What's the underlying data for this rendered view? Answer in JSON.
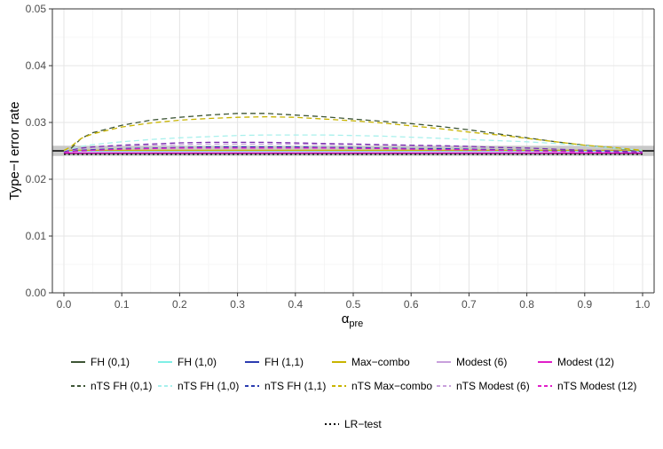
{
  "chart_data": {
    "type": "line",
    "xlabel_main": "α",
    "xlabel_sub": "pre",
    "ylabel": "Type−I error rate",
    "xlim": [
      0,
      1
    ],
    "ylim": [
      0,
      0.05
    ],
    "x_ticks": [
      0,
      0.1,
      0.2,
      0.3,
      0.4,
      0.5,
      0.6,
      0.7,
      0.8,
      0.9,
      1.0
    ],
    "x_tick_labels": [
      "0.0",
      "0.1",
      "0.2",
      "0.3",
      "0.4",
      "0.5",
      "0.6",
      "0.7",
      "0.8",
      "0.9",
      "1.0"
    ],
    "y_ticks": [
      0,
      0.01,
      0.02,
      0.03,
      0.04,
      0.05
    ],
    "y_tick_labels": [
      "0.00",
      "0.01",
      "0.02",
      "0.03",
      "0.04",
      "0.05"
    ],
    "reference_line": {
      "value": 0.025,
      "band": [
        0.0241,
        0.0259
      ],
      "color": "#000000",
      "band_color": "#bfbfbf"
    },
    "x": [
      0,
      0.01,
      0.03,
      0.05,
      0.1,
      0.15,
      0.2,
      0.25,
      0.3,
      0.35,
      0.4,
      0.45,
      0.5,
      0.55,
      0.6,
      0.65,
      0.7,
      0.75,
      0.8,
      0.85,
      0.9,
      0.95,
      1.0
    ],
    "series": [
      {
        "name": "FH (0,1)",
        "color": "#3d5535",
        "dash": "solid",
        "values": [
          0.0245,
          0.0245,
          0.0245,
          0.0245,
          0.0245,
          0.0245,
          0.0245,
          0.0245,
          0.0245,
          0.0245,
          0.0245,
          0.0245,
          0.0245,
          0.0245,
          0.0245,
          0.0245,
          0.0245,
          0.0245,
          0.0245,
          0.0245,
          0.0245,
          0.0245,
          0.0245
        ]
      },
      {
        "name": "FH (1,0)",
        "color": "#7fefe6",
        "dash": "solid",
        "values": [
          0.0249,
          0.0249,
          0.0249,
          0.0249,
          0.0249,
          0.0249,
          0.0249,
          0.0249,
          0.0249,
          0.0249,
          0.0249,
          0.0249,
          0.0249,
          0.0249,
          0.0249,
          0.0249,
          0.0249,
          0.0249,
          0.0249,
          0.0249,
          0.0249,
          0.0249,
          0.0249
        ]
      },
      {
        "name": "FH (1,1)",
        "color": "#2b3cb0",
        "dash": "solid",
        "values": [
          0.0247,
          0.0247,
          0.0247,
          0.0247,
          0.0247,
          0.0247,
          0.0247,
          0.0247,
          0.0247,
          0.0247,
          0.0247,
          0.0247,
          0.0247,
          0.0247,
          0.0247,
          0.0247,
          0.0247,
          0.0247,
          0.0247,
          0.0247,
          0.0247,
          0.0247,
          0.0247
        ]
      },
      {
        "name": "Max−combo",
        "color": "#c8b400",
        "dash": "solid",
        "values": [
          0.0251,
          0.0251,
          0.0251,
          0.0251,
          0.0251,
          0.0251,
          0.0251,
          0.0251,
          0.0251,
          0.0251,
          0.0251,
          0.0251,
          0.0251,
          0.0251,
          0.0251,
          0.0251,
          0.0251,
          0.0251,
          0.0251,
          0.0251,
          0.0251,
          0.0251,
          0.0251
        ]
      },
      {
        "name": "Modest (6)",
        "color": "#c8a0dc",
        "dash": "solid",
        "values": [
          0.0248,
          0.0248,
          0.0248,
          0.0248,
          0.0248,
          0.0248,
          0.0248,
          0.0248,
          0.0248,
          0.0248,
          0.0248,
          0.0248,
          0.0248,
          0.0248,
          0.0248,
          0.0248,
          0.0248,
          0.0248,
          0.0248,
          0.0248,
          0.0248,
          0.0248,
          0.0248
        ]
      },
      {
        "name": "Modest (12)",
        "color": "#e01ec8",
        "dash": "solid",
        "values": [
          0.0246,
          0.0246,
          0.0246,
          0.0246,
          0.0246,
          0.0246,
          0.0246,
          0.0246,
          0.0246,
          0.0246,
          0.0246,
          0.0246,
          0.0246,
          0.0246,
          0.0246,
          0.0246,
          0.0246,
          0.0246,
          0.0246,
          0.0246,
          0.0246,
          0.0246,
          0.0246
        ]
      },
      {
        "name": "nTS FH (0,1)",
        "color": "#3d5535",
        "dash": "dashed",
        "values": [
          0.0245,
          0.0252,
          0.0272,
          0.0282,
          0.0295,
          0.0304,
          0.0309,
          0.0313,
          0.0316,
          0.0316,
          0.0313,
          0.031,
          0.0306,
          0.0302,
          0.0298,
          0.0293,
          0.0287,
          0.028,
          0.0273,
          0.0266,
          0.026,
          0.0255,
          0.0249
        ]
      },
      {
        "name": "nTS FH (1,0)",
        "color": "#a8f0ec",
        "dash": "dashed",
        "values": [
          0.0249,
          0.0252,
          0.0258,
          0.0261,
          0.0266,
          0.027,
          0.0273,
          0.0275,
          0.0277,
          0.0278,
          0.0278,
          0.0278,
          0.0277,
          0.0276,
          0.0274,
          0.0272,
          0.027,
          0.0268,
          0.0266,
          0.0263,
          0.0259,
          0.0255,
          0.0251
        ]
      },
      {
        "name": "nTS FH (1,1)",
        "color": "#2b3cb0",
        "dash": "dashed",
        "values": [
          0.0247,
          0.0249,
          0.0251,
          0.0252,
          0.0254,
          0.0255,
          0.0256,
          0.0257,
          0.0257,
          0.0257,
          0.0257,
          0.0256,
          0.0256,
          0.0255,
          0.0254,
          0.0254,
          0.0253,
          0.0252,
          0.0251,
          0.025,
          0.0249,
          0.0248,
          0.0247
        ]
      },
      {
        "name": "nTS Max−combo",
        "color": "#c8b400",
        "dash": "dashed",
        "values": [
          0.0251,
          0.0256,
          0.0272,
          0.028,
          0.0292,
          0.0299,
          0.0304,
          0.0307,
          0.0309,
          0.031,
          0.0309,
          0.0306,
          0.0303,
          0.0299,
          0.0294,
          0.0289,
          0.0283,
          0.0278,
          0.0272,
          0.0266,
          0.026,
          0.0256,
          0.0251
        ]
      },
      {
        "name": "nTS Modest (6)",
        "color": "#c8a0dc",
        "dash": "dashed",
        "values": [
          0.0248,
          0.025,
          0.0254,
          0.0256,
          0.0258,
          0.026,
          0.0261,
          0.0262,
          0.0262,
          0.0262,
          0.0262,
          0.0261,
          0.0261,
          0.026,
          0.0259,
          0.0258,
          0.0257,
          0.0256,
          0.0255,
          0.0253,
          0.0252,
          0.025,
          0.0249
        ]
      },
      {
        "name": "nTS Modest (12)",
        "color": "#e01ec8",
        "dash": "dashed",
        "values": [
          0.0246,
          0.0248,
          0.025,
          0.0251,
          0.0253,
          0.0254,
          0.0255,
          0.0255,
          0.0255,
          0.0255,
          0.0255,
          0.0255,
          0.0254,
          0.0254,
          0.0253,
          0.0252,
          0.0252,
          0.0251,
          0.025,
          0.0249,
          0.0248,
          0.0247,
          0.0246
        ]
      },
      {
        "name": "nTS FH (0,1) purple",
        "legend": false,
        "color": "#7b2fb0",
        "dash": "dashed",
        "values": [
          0.0248,
          0.0251,
          0.0255,
          0.0257,
          0.026,
          0.0262,
          0.0264,
          0.0265,
          0.0265,
          0.0265,
          0.0264,
          0.0263,
          0.0262,
          0.0261,
          0.026,
          0.0259,
          0.0258,
          0.0256,
          0.0255,
          0.0253,
          0.0251,
          0.025,
          0.0248
        ]
      },
      {
        "name": "LR−test",
        "color": "#000000",
        "dash": "dotted",
        "values": [
          0.0244,
          0.0244,
          0.0244,
          0.0244,
          0.0244,
          0.0244,
          0.0244,
          0.0244,
          0.0244,
          0.0244,
          0.0244,
          0.0244,
          0.0244,
          0.0244,
          0.0244,
          0.0244,
          0.0244,
          0.0244,
          0.0244,
          0.0244,
          0.0244,
          0.0244,
          0.0244
        ]
      }
    ],
    "legend": {
      "placement": "bottom",
      "rows": [
        [
          "FH (0,1)",
          "FH (1,0)",
          "FH (1,1)",
          "Max−combo",
          "Modest (6)",
          "Modest (12)"
        ],
        [
          "nTS FH (0,1)",
          "nTS FH (1,0)",
          "nTS FH (1,1)",
          "nTS Max−combo",
          "nTS Modest (6)",
          "nTS Modest (12)"
        ],
        [
          "LR−test"
        ]
      ]
    }
  }
}
